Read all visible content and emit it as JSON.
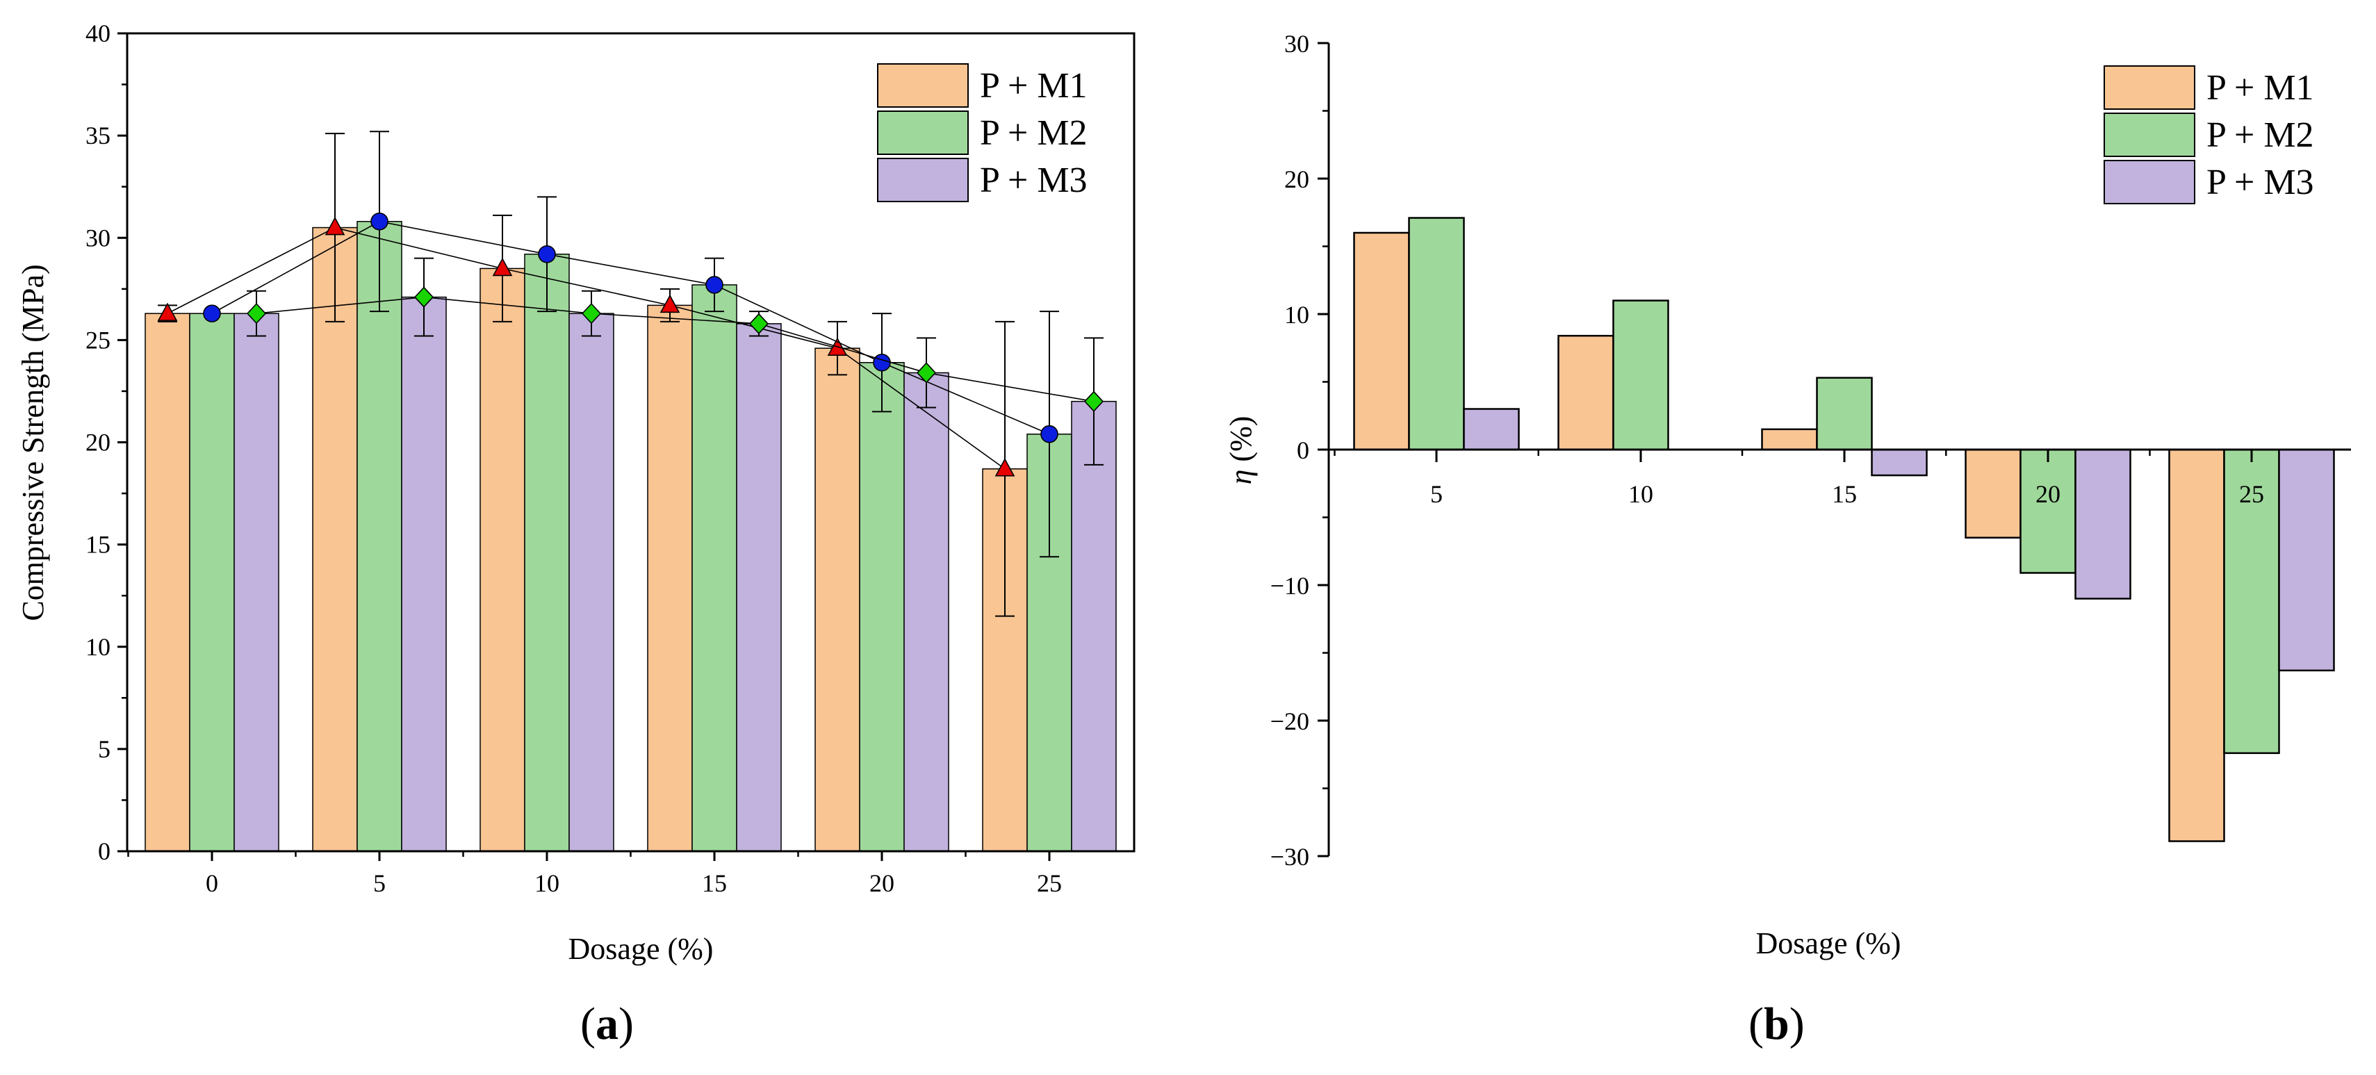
{
  "colors": {
    "P + M1": "#f9c593",
    "P + M2": "#9fd89b",
    "P + M3": "#c1b3dd",
    "triangle": "#e60000",
    "circle": "#0b1ee0",
    "diamond": "#18d400"
  },
  "chart_data": [
    {
      "id": "a",
      "type": "bar",
      "panel_label": "(a)",
      "panel_label_bold": "a",
      "title": "",
      "xlabel": "Dosage (%)",
      "ylabel": "Compressive Strength (MPa)",
      "ylim": [
        0,
        40
      ],
      "yticks": [
        "0",
        "5",
        "10",
        "15",
        "20",
        "25",
        "30",
        "35",
        "40"
      ],
      "categories": [
        "0",
        "5",
        "10",
        "15",
        "20",
        "25"
      ],
      "legend": [
        "P + M1",
        "P + M2",
        "P + M3"
      ],
      "legend_position": "top-right",
      "series": [
        {
          "name": "P + M1",
          "values": [
            26.3,
            30.5,
            28.5,
            26.7,
            24.6,
            18.7
          ]
        },
        {
          "name": "P + M2",
          "values": [
            26.3,
            30.8,
            29.2,
            27.7,
            23.9,
            20.4
          ]
        },
        {
          "name": "P + M3",
          "values": [
            26.3,
            27.1,
            26.3,
            25.8,
            23.4,
            22.0
          ]
        }
      ],
      "markers": [
        {
          "series": "P + M1",
          "shape": "triangle",
          "values": [
            26.3,
            30.5,
            28.5,
            26.7,
            24.6,
            18.7
          ],
          "error": [
            0.4,
            4.6,
            2.6,
            0.8,
            1.3,
            7.2
          ]
        },
        {
          "series": "P + M2",
          "shape": "circle",
          "values": [
            26.3,
            30.8,
            29.2,
            27.7,
            23.9,
            20.4
          ],
          "error": [
            0.0,
            4.4,
            2.8,
            1.3,
            2.4,
            6.0
          ]
        },
        {
          "series": "P + M3",
          "shape": "diamond",
          "values": [
            26.3,
            27.1,
            26.3,
            25.8,
            23.4,
            22.0
          ],
          "error": [
            1.1,
            1.9,
            1.1,
            0.6,
            1.7,
            3.1
          ]
        }
      ]
    },
    {
      "id": "b",
      "type": "bar",
      "panel_label": "(b)",
      "panel_label_bold": "b",
      "title": "",
      "xlabel": "Dosage (%)",
      "ylabel_symbol": "η",
      "ylabel_unit": " (%)",
      "ylim": [
        -30,
        30
      ],
      "yticks": [
        "−30",
        "−20",
        "−10",
        "0",
        "10",
        "20",
        "30"
      ],
      "categories": [
        "5",
        "10",
        "15",
        "20",
        "25"
      ],
      "legend": [
        "P + M1",
        "P + M2",
        "P + M3"
      ],
      "legend_position": "top-right",
      "series": [
        {
          "name": "P + M1",
          "values": [
            16.0,
            8.4,
            1.5,
            -6.5,
            -28.9
          ]
        },
        {
          "name": "P + M2",
          "values": [
            17.1,
            11.0,
            5.3,
            -9.1,
            -22.4
          ]
        },
        {
          "name": "P + M3",
          "values": [
            3.0,
            0.0,
            -1.9,
            -11.0,
            -16.3
          ]
        }
      ]
    }
  ]
}
